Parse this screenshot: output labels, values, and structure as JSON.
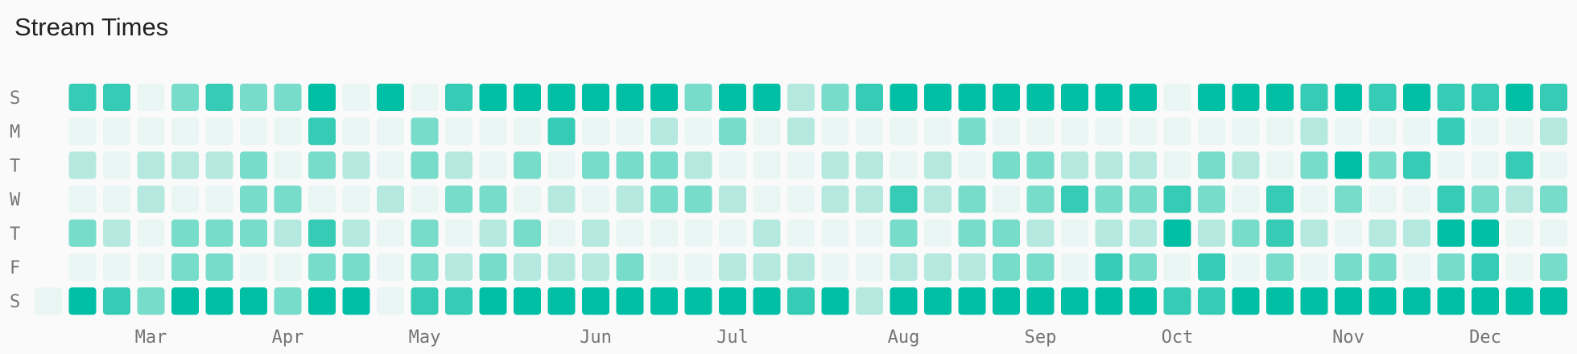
{
  "chart_data": {
    "type": "heatmap",
    "title": "Stream Times",
    "rows": [
      "S",
      "M",
      "T",
      "W",
      "T",
      "F",
      "S"
    ],
    "categories": [
      null,
      null,
      null,
      "Mar",
      null,
      null,
      null,
      "Apr",
      null,
      null,
      null,
      "May",
      null,
      null,
      null,
      null,
      "Jun",
      null,
      null,
      null,
      "Jul",
      null,
      null,
      null,
      null,
      "Aug",
      null,
      null,
      null,
      "Sep",
      null,
      null,
      null,
      "Oct",
      null,
      null,
      null,
      null,
      "Nov",
      null,
      null,
      null,
      "Dec",
      null,
      null
    ],
    "colors": [
      "#e9f6f3",
      "#b5e9e0",
      "#78dccb",
      "#36cbb5",
      "#00bfa5"
    ],
    "values": [
      [
        null,
        3,
        3,
        0,
        2,
        3,
        2,
        2,
        4,
        0,
        4,
        0,
        3,
        4,
        4,
        4,
        4,
        4,
        4,
        2,
        4,
        4,
        1,
        2,
        3,
        4,
        4,
        4,
        4,
        4,
        4,
        4,
        4,
        0,
        4,
        4,
        4,
        3,
        4,
        3,
        4,
        3,
        3,
        4,
        3
      ],
      [
        null,
        0,
        0,
        0,
        0,
        0,
        0,
        0,
        3,
        0,
        0,
        2,
        0,
        0,
        0,
        3,
        0,
        0,
        1,
        0,
        2,
        0,
        1,
        0,
        0,
        0,
        0,
        2,
        0,
        0,
        0,
        0,
        0,
        0,
        0,
        0,
        0,
        1,
        0,
        0,
        0,
        3,
        0,
        0,
        1
      ],
      [
        null,
        1,
        0,
        1,
        1,
        1,
        2,
        0,
        2,
        1,
        0,
        2,
        1,
        0,
        2,
        0,
        2,
        2,
        2,
        1,
        0,
        0,
        0,
        1,
        1,
        0,
        1,
        0,
        2,
        2,
        1,
        1,
        1,
        0,
        2,
        1,
        0,
        2,
        4,
        2,
        3,
        0,
        0,
        3,
        0
      ],
      [
        null,
        0,
        0,
        1,
        0,
        0,
        2,
        2,
        0,
        0,
        1,
        0,
        2,
        2,
        0,
        1,
        0,
        1,
        2,
        2,
        1,
        0,
        0,
        1,
        1,
        3,
        1,
        2,
        0,
        2,
        3,
        2,
        2,
        3,
        2,
        0,
        3,
        0,
        2,
        0,
        0,
        3,
        2,
        1,
        2
      ],
      [
        null,
        2,
        1,
        0,
        2,
        2,
        2,
        1,
        3,
        1,
        0,
        2,
        0,
        1,
        2,
        0,
        1,
        0,
        0,
        0,
        0,
        1,
        0,
        0,
        0,
        2,
        0,
        2,
        2,
        1,
        0,
        1,
        1,
        4,
        1,
        2,
        3,
        1,
        0,
        1,
        1,
        4,
        4,
        0,
        0
      ],
      [
        null,
        0,
        0,
        0,
        2,
        2,
        0,
        0,
        2,
        2,
        0,
        2,
        1,
        2,
        1,
        1,
        1,
        2,
        0,
        0,
        1,
        1,
        1,
        0,
        0,
        1,
        1,
        1,
        2,
        2,
        0,
        3,
        2,
        0,
        3,
        0,
        2,
        0,
        2,
        2,
        0,
        2,
        3,
        0,
        2
      ],
      [
        0,
        4,
        3,
        2,
        4,
        4,
        4,
        2,
        4,
        4,
        0,
        3,
        3,
        4,
        4,
        4,
        4,
        4,
        4,
        4,
        4,
        4,
        3,
        4,
        1,
        4,
        4,
        4,
        4,
        4,
        4,
        4,
        4,
        3,
        3,
        4,
        4,
        4,
        4,
        4,
        4,
        4,
        4,
        4,
        4
      ]
    ]
  }
}
